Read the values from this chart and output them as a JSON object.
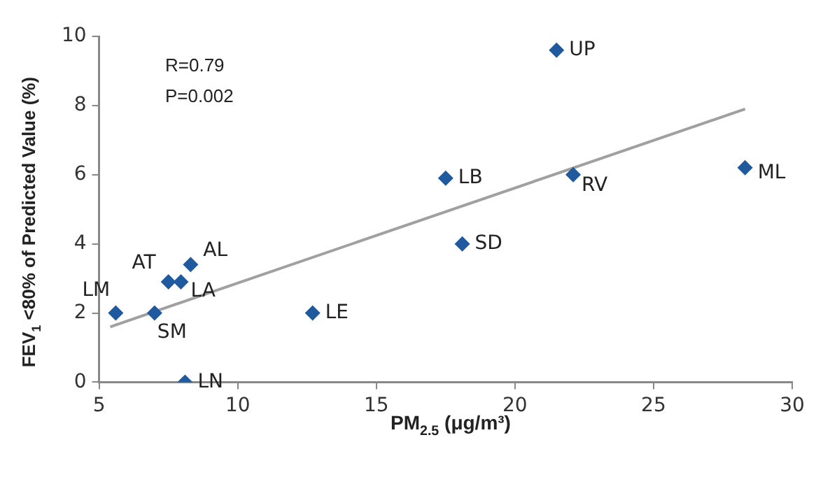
{
  "chart_data": {
    "type": "scatter",
    "xlabel": "PM$_{2.5}$ (μg/m³)",
    "ylabel": "FEV$_{1}$ <80% of Predicted Value (%)",
    "annotations": [
      "R=0.79",
      "P=0.002"
    ],
    "series": [
      {
        "color": "#1f5a9e",
        "marker": "diamond",
        "x": [
          5.6,
          7.0,
          7.5,
          7.95,
          8.3,
          8.1,
          12.7,
          17.5,
          18.1,
          21.5,
          22.1,
          28.3
        ],
        "values": [
          2.0,
          2.0,
          2.9,
          2.9,
          3.4,
          0,
          2.0,
          5.9,
          4.0,
          9.6,
          6.0,
          6.2
        ],
        "value_labels": [
          "LM",
          "SM",
          "AT",
          "LA",
          "AL",
          "LN",
          "LE",
          "LB",
          "SD",
          "UP",
          "RV",
          "ML"
        ]
      },
      {
        "type": "line",
        "color": "#a0a0a0",
        "marker": "none",
        "x": [
          5.4,
          28.3
        ],
        "values": [
          1.6,
          7.9
        ]
      }
    ],
    "xlim": [
      5,
      30
    ],
    "xticks": [
      5,
      10,
      15,
      20,
      25,
      30
    ],
    "ylim": [
      0,
      10
    ],
    "yticks": [
      0,
      2,
      4,
      6,
      8,
      10
    ],
    "grid": false,
    "legend": false
  }
}
